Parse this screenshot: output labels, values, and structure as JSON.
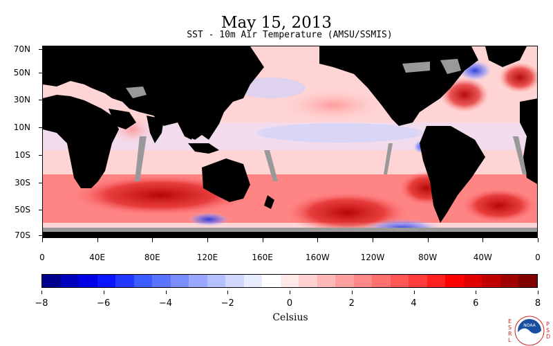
{
  "title": "May 15, 2013",
  "subtitle": "SST - 10m Air Temperature (AMSU/SSMIS)",
  "map": {
    "lat_labels": [
      "70N",
      "50N",
      "30N",
      "10N",
      "10S",
      "30S",
      "50S",
      "70S"
    ],
    "lon_labels": [
      "0",
      "40E",
      "80E",
      "120E",
      "160E",
      "160W",
      "120W",
      "80W",
      "40W",
      "0"
    ],
    "land_color": "#000000",
    "missing_color": "#999999",
    "ice_color": "#999999"
  },
  "colorbar": {
    "tick_labels": [
      "−8",
      "−6",
      "−4",
      "−2",
      "0",
      "2",
      "4",
      "6",
      "8"
    ],
    "unit": "Celsius",
    "min": -8,
    "max": 8,
    "colors": [
      "#00008f",
      "#0000bf",
      "#0000e6",
      "#0a14ff",
      "#2338ff",
      "#3b5cff",
      "#5a74ff",
      "#7b8eff",
      "#9aa8ff",
      "#b5c0ff",
      "#d0d8ff",
      "#e8ecff",
      "#ffffff",
      "#ffe8e8",
      "#ffd0d0",
      "#ffb8b8",
      "#ffa0a0",
      "#ff8888",
      "#ff7070",
      "#ff5656",
      "#ff3c3c",
      "#ff2020",
      "#ff0000",
      "#e00000",
      "#c00000",
      "#a00000",
      "#800000"
    ]
  },
  "logo": {
    "left_letters": [
      "E",
      "S",
      "R",
      "L"
    ],
    "right_letters": [
      "P",
      "S",
      "D"
    ],
    "name": "NOAA"
  }
}
